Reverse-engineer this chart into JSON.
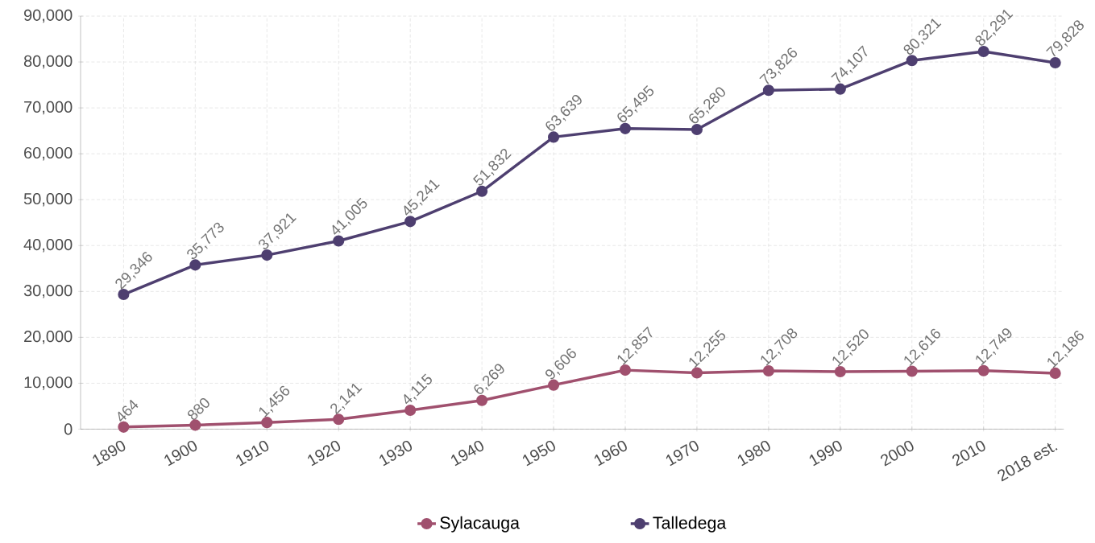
{
  "chart_data": {
    "type": "line",
    "categories": [
      "1890",
      "1900",
      "1910",
      "1920",
      "1930",
      "1940",
      "1950",
      "1960",
      "1970",
      "1980",
      "1990",
      "2000",
      "2010",
      "2018 est."
    ],
    "series": [
      {
        "name": "Sylacauga",
        "color": "#a0506e",
        "values": [
          464,
          880,
          1456,
          2141,
          4115,
          6269,
          9606,
          12857,
          12255,
          12708,
          12520,
          12616,
          12749,
          12186
        ],
        "value_labels": [
          "464",
          "880",
          "1,456",
          "2,141",
          "4,115",
          "6,269",
          "9,606",
          "12,857",
          "12,255",
          "12,708",
          "12,520",
          "12,616",
          "12,749",
          "12,186"
        ]
      },
      {
        "name": "Talledega",
        "color": "#4e3f70",
        "values": [
          29346,
          35773,
          37921,
          41005,
          45241,
          51832,
          63639,
          65495,
          65280,
          73826,
          74107,
          80321,
          82291,
          79828
        ],
        "value_labels": [
          "29,346",
          "35,773",
          "37,921",
          "41,005",
          "45,241",
          "51,832",
          "63,639",
          "65,495",
          "65,280",
          "73,826",
          "74,107",
          "80,321",
          "82,291",
          "79,828"
        ]
      }
    ],
    "ylim": [
      0,
      90000
    ],
    "yticks": [
      {
        "value": 0,
        "label": "0"
      },
      {
        "value": 10000,
        "label": "10,000"
      },
      {
        "value": 20000,
        "label": "20,000"
      },
      {
        "value": 30000,
        "label": "30,000"
      },
      {
        "value": 40000,
        "label": "40,000"
      },
      {
        "value": 50000,
        "label": "50,000"
      },
      {
        "value": 60000,
        "label": "60,000"
      },
      {
        "value": 70000,
        "label": "70,000"
      },
      {
        "value": 80000,
        "label": "80,000"
      },
      {
        "value": 90000,
        "label": "90,000"
      }
    ],
    "grid": true,
    "legend": "bottom",
    "marker": "circle",
    "line_style": "solid"
  }
}
